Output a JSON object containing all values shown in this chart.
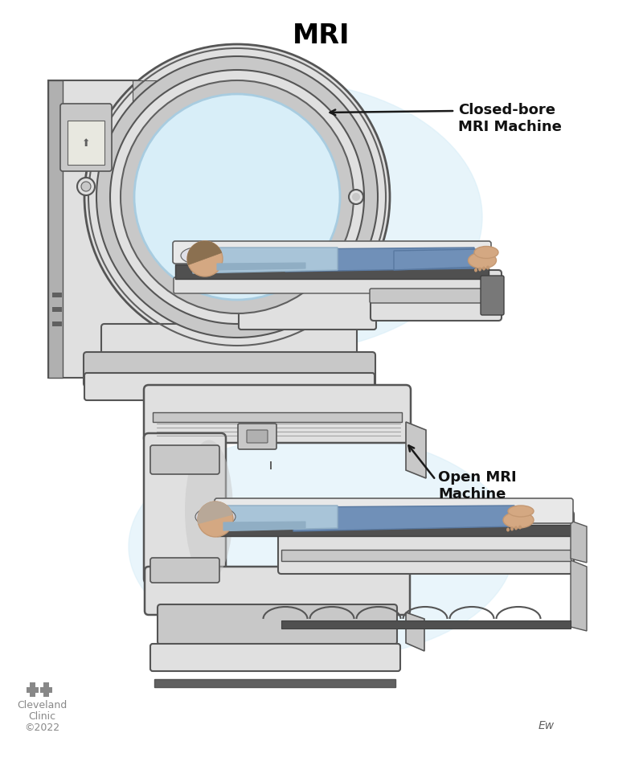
{
  "title": "MRI",
  "title_fontsize": 24,
  "title_fontweight": "bold",
  "label_closed": "Closed-bore\nMRI Machine",
  "label_open": "Open MRI\nMachine",
  "label_fontsize": 13,
  "label_fontweight": "bold",
  "cc_text_line1": "Cleveland",
  "cc_text_line2": "Clinic",
  "cc_text_line3": "©2022",
  "cc_fontsize": 9,
  "cc_color": "#888888",
  "background_color": "#ffffff",
  "mc_white": "#f0f0f0",
  "mc_light": "#e0e0e0",
  "mc_mid": "#c8c8c8",
  "mc_gray": "#b0b0b0",
  "mc_dark": "#909090",
  "mc_darker": "#606060",
  "mc_darkest": "#404040",
  "mc_edge": "#555555",
  "glow_color": "#d8eef8",
  "glow_color2": "#c8e4f4",
  "table_dark": "#505050",
  "table_mid": "#787878",
  "table_light": "#c0c0c0",
  "patient_shirt": "#a8c4d8",
  "patient_shirt2": "#90aec4",
  "patient_pants": "#7090b8",
  "patient_pants2": "#5878a0",
  "patient_skin": "#d4a882",
  "patient_skin2": "#c49872",
  "patient_hair": "#8b7050",
  "arrow_color": "#1a1a1a",
  "label_color": "#111111"
}
